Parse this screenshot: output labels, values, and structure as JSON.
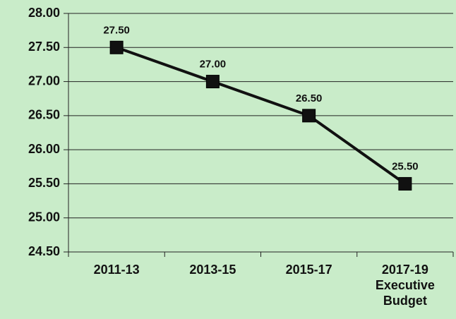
{
  "chart_data": {
    "type": "line",
    "categories": [
      "2011-13",
      "2013-15",
      "2015-17",
      "2017-19 Executive Budget"
    ],
    "series": [
      {
        "color": "#111111",
        "values": [
          27.5,
          27.0,
          26.5,
          25.5
        ],
        "value_labels": [
          "27.50",
          "27.00",
          "26.50",
          "25.50"
        ]
      }
    ],
    "ylim": [
      24.5,
      28
    ],
    "yticks": [
      {
        "value": 24.5,
        "label": "24.50"
      },
      {
        "value": 25,
        "label": "25.00"
      },
      {
        "value": 25.5,
        "label": "25.50"
      },
      {
        "value": 26,
        "label": "26.00"
      },
      {
        "value": 26.5,
        "label": "26.50"
      },
      {
        "value": 27,
        "label": "27.00"
      },
      {
        "value": 27.5,
        "label": "27.50"
      },
      {
        "value": 28,
        "label": "28.00"
      }
    ],
    "grid": true
  }
}
